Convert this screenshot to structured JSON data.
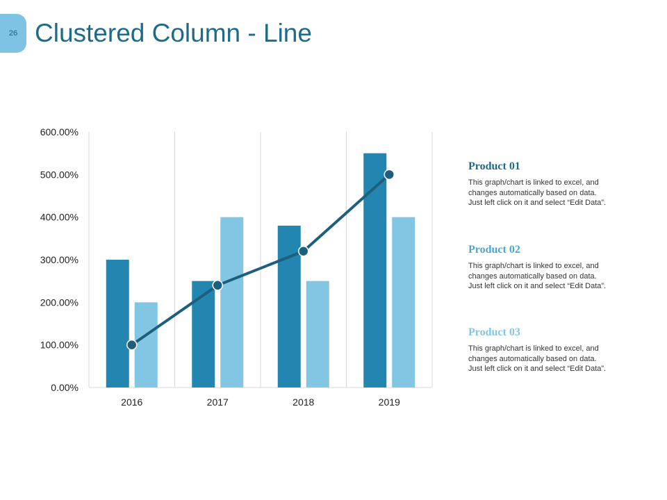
{
  "slide": {
    "page_number": "26",
    "title": "Clustered Column - Line"
  },
  "colors": {
    "series_dark": "#2386b0",
    "series_light": "#82c6e4",
    "line": "#1d5f7c",
    "title": "#1e6a89",
    "product_01": "#1e6a89",
    "product_02": "#4aa6d0",
    "product_03": "#82c6e4"
  },
  "chart_data": {
    "type": "bar",
    "combo_line": true,
    "title": "",
    "xlabel": "",
    "ylabel": "",
    "categories": [
      "2016",
      "2017",
      "2018",
      "2019"
    ],
    "ylim": [
      0,
      600
    ],
    "y_ticks": [
      0,
      100,
      200,
      300,
      400,
      500,
      600
    ],
    "y_tick_labels": [
      "0.00%",
      "100.00%",
      "200.00%",
      "300.00%",
      "400.00%",
      "500.00%",
      "600.00%"
    ],
    "grid": "vertical",
    "series": [
      {
        "name": "Product 01",
        "kind": "bar",
        "values": [
          300,
          250,
          380,
          550
        ]
      },
      {
        "name": "Product 02",
        "kind": "bar",
        "values": [
          200,
          400,
          250,
          400
        ]
      },
      {
        "name": "Product 03",
        "kind": "line",
        "values": [
          100,
          240,
          320,
          500
        ]
      }
    ]
  },
  "products": [
    {
      "title": "Product 01",
      "description_lines": [
        "This graph/chart is linked to excel, and",
        "changes automatically based on data.",
        "Just left click on it and select “Edit Data”."
      ]
    },
    {
      "title": "Product 02",
      "description_lines": [
        "This graph/chart is linked to excel, and",
        "changes automatically based on data.",
        "Just left click on it and select “Edit Data”."
      ]
    },
    {
      "title": "Product 03",
      "description_lines": [
        "This graph/chart is linked to excel, and",
        "changes automatically based on data.",
        "Just left click on it and select “Edit Data”."
      ]
    }
  ]
}
